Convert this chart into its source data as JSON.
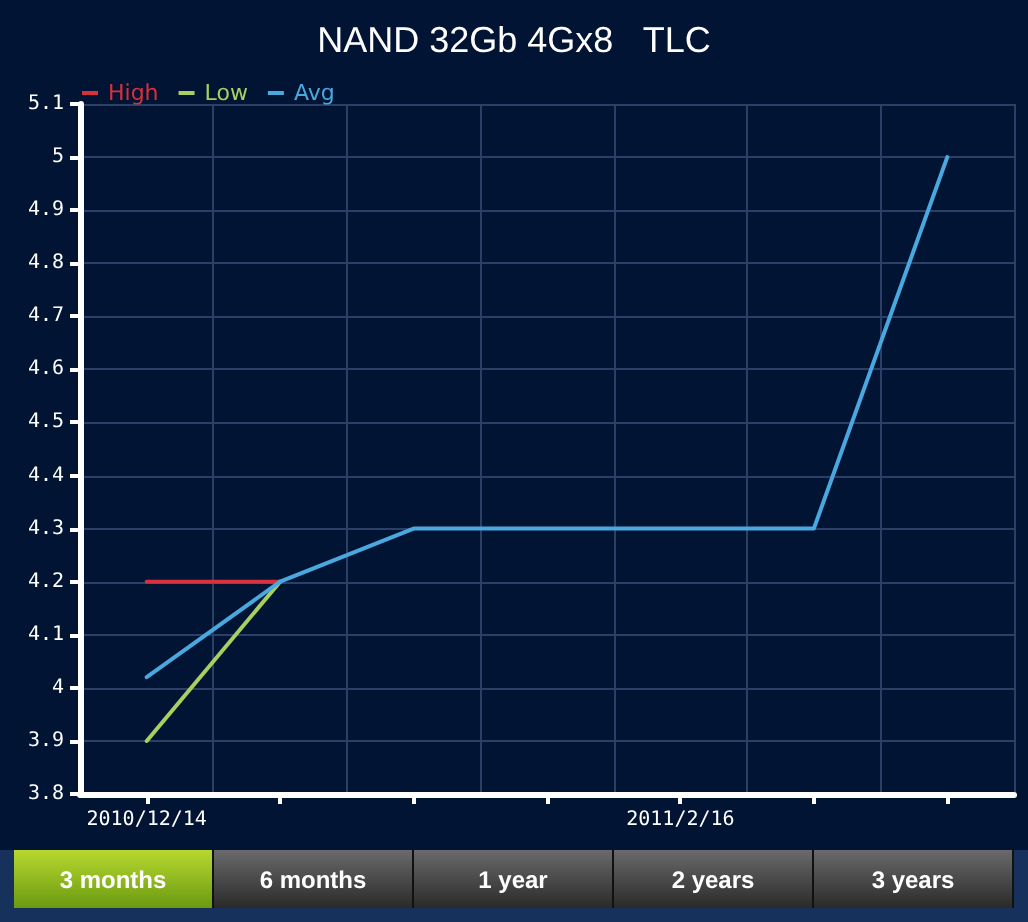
{
  "chart_data": {
    "type": "line",
    "title": "NAND 32Gb 4Gx8   TLC",
    "categories": [
      "2010/12/14",
      null,
      null,
      null,
      "2011/2/16",
      null,
      null
    ],
    "series": [
      {
        "name": "High",
        "color": "#d8303c",
        "values": [
          4.2,
          4.2,
          null,
          null,
          null,
          null,
          null
        ]
      },
      {
        "name": "Low",
        "color": "#a8d060",
        "values": [
          3.9,
          4.2,
          null,
          null,
          null,
          null,
          null
        ]
      },
      {
        "name": "Avg",
        "color": "#4aa8e0",
        "values": [
          4.02,
          4.2,
          4.3,
          4.3,
          4.3,
          4.3,
          5.0
        ]
      }
    ],
    "ylim": [
      3.8,
      5.1
    ],
    "yticks": [
      3.8,
      3.9,
      4,
      4.1,
      4.2,
      4.3,
      4.4,
      4.5,
      4.6,
      4.7,
      4.8,
      4.9,
      5,
      5.1
    ],
    "grid": true,
    "legend": "top left",
    "marker": "none",
    "line_style": "solid",
    "annotations": [
      "3 months",
      "6 months",
      "1 year",
      "2 years",
      "3 years"
    ]
  }
}
